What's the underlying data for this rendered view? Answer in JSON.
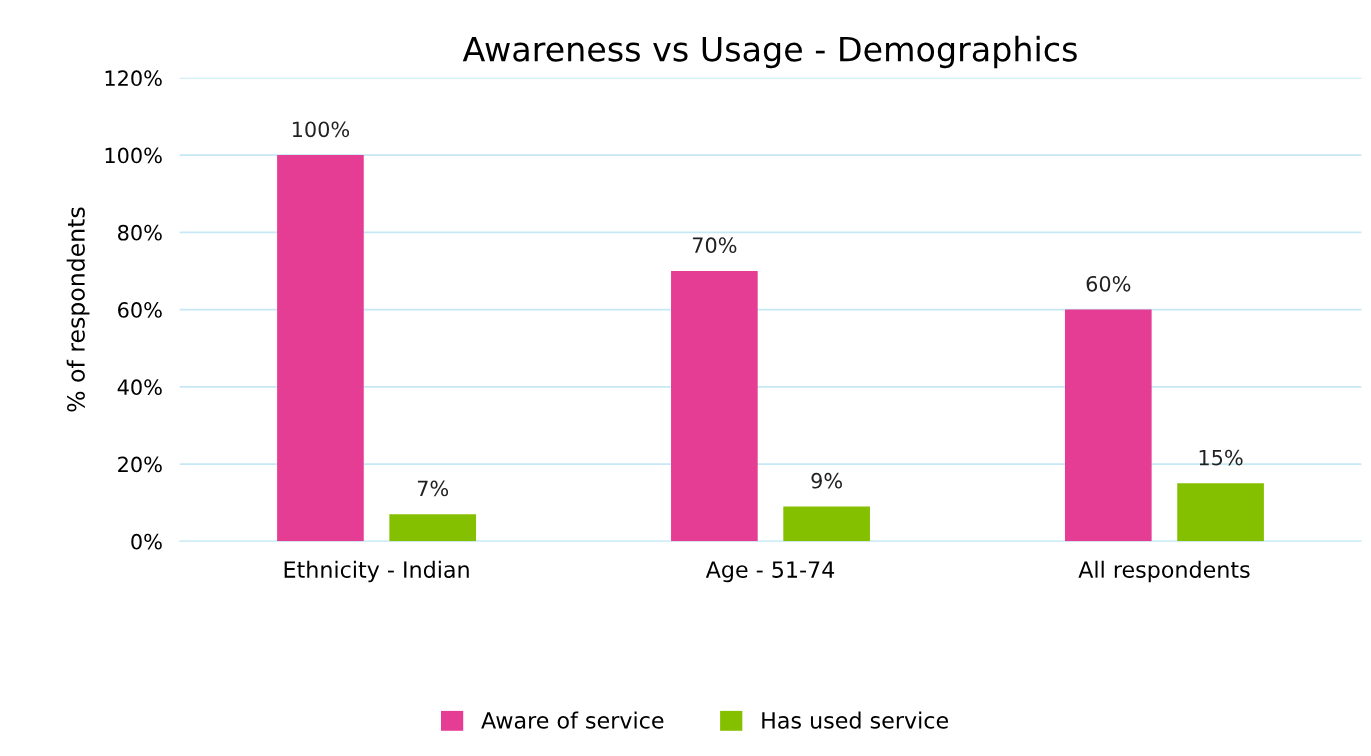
{
  "chart_data": {
    "type": "bar",
    "title": "Awareness vs Usage - Demographics",
    "ylabel": "% of respondents",
    "categories": [
      "Ethnicity - Indian",
      "Age - 51-74",
      "All respondents"
    ],
    "series": [
      {
        "name": "Aware of service",
        "color": "#e63d94",
        "values": [
          100,
          70,
          60
        ],
        "value_labels": [
          "100%",
          "70%",
          "60%"
        ]
      },
      {
        "name": "Has used service",
        "color": "#84bf00",
        "values": [
          7,
          9,
          15
        ],
        "value_labels": [
          "7%",
          "9%",
          "15%"
        ]
      }
    ],
    "ylim": [
      0,
      120
    ],
    "yticks": [
      {
        "value": 0,
        "label": "0%"
      },
      {
        "value": 20,
        "label": "20%"
      },
      {
        "value": 40,
        "label": "40%"
      },
      {
        "value": 60,
        "label": "60%"
      },
      {
        "value": 80,
        "label": "80%"
      },
      {
        "value": 100,
        "label": "100%"
      },
      {
        "value": 120,
        "label": "120%"
      }
    ],
    "grid": "y",
    "legend": "bottom"
  }
}
